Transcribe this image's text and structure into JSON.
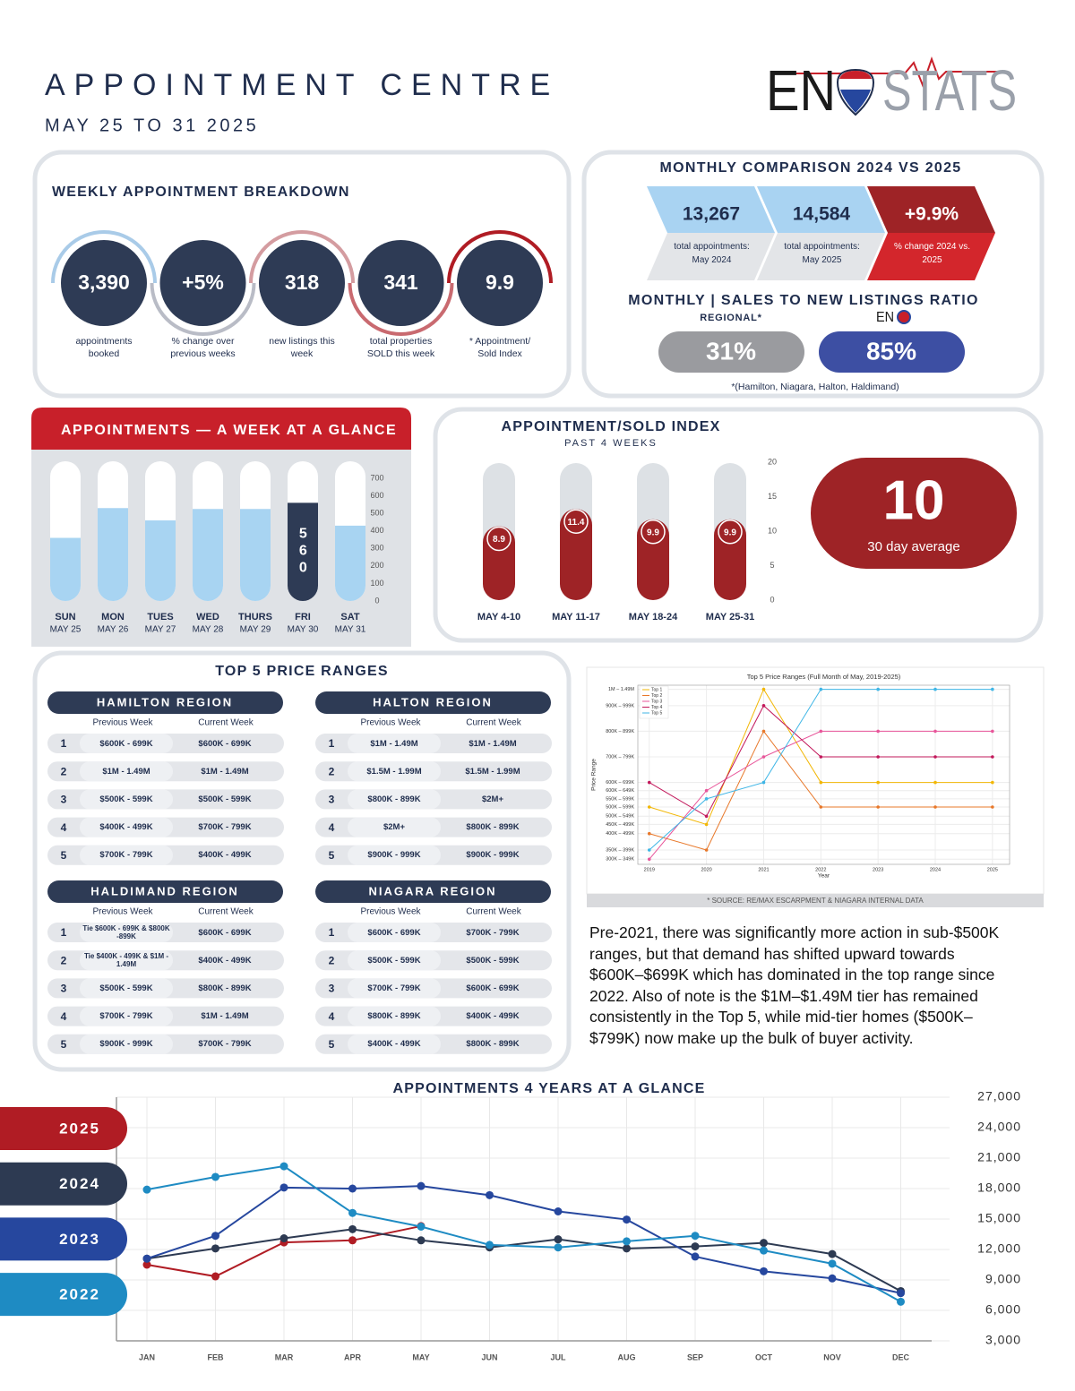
{
  "header": {
    "title": "APPOINTMENT CENTRE",
    "subtitle": "MAY 25 TO 31 2025"
  },
  "logo": {
    "left": "EN",
    "right": "STATS"
  },
  "weekly_breakdown": {
    "title": "WEEKLY APPOINTMENT BREAKDOWN",
    "items": [
      {
        "value": "3,390",
        "label": "appointments booked"
      },
      {
        "value": "+5%",
        "label": "% change over previous weeks"
      },
      {
        "value": "318",
        "label": "new listings this week"
      },
      {
        "value": "341",
        "label": "total properties SOLD this week"
      },
      {
        "value": "9.9",
        "label": "* Appointment/ Sold Index"
      }
    ]
  },
  "monthly_comparison": {
    "title": "MONTHLY COMPARISON 2024 VS 2025",
    "items": [
      {
        "value": "13,267",
        "label": "total appointments: May 2024"
      },
      {
        "value": "14,584",
        "label": "total appointments: May 2025"
      },
      {
        "value": "+9.9%",
        "label": "% change 2024 vs. 2025"
      }
    ]
  },
  "ratio": {
    "title": "MONTHLY | SALES TO NEW LISTINGS RATIO",
    "regional_label": "REGIONAL*",
    "regional_value": "31%",
    "brand_value": "85%",
    "footnote": "*(Hamilton, Niagara, Halton, Haldimand)"
  },
  "price_ranges": {
    "title": "TOP 5 PRICE RANGES",
    "column_headers": [
      "Previous Week",
      "Current Week"
    ],
    "regions": [
      {
        "name": "HAMILTON REGION",
        "rows": [
          {
            "rank": "1",
            "previous": "$600K - 699K",
            "current": "$600K - 699K"
          },
          {
            "rank": "2",
            "previous": "$1M - 1.49M",
            "current": "$1M - 1.49M"
          },
          {
            "rank": "3",
            "previous": "$500K - 599K",
            "current": "$500K - 599K"
          },
          {
            "rank": "4",
            "previous": "$400K - 499K",
            "current": "$700K - 799K"
          },
          {
            "rank": "5",
            "previous": "$700K - 799K",
            "current": "$400K - 499K"
          }
        ]
      },
      {
        "name": "HALTON REGION",
        "rows": [
          {
            "rank": "1",
            "previous": "$1M - 1.49M",
            "current": "$1M - 1.49M"
          },
          {
            "rank": "2",
            "previous": "$1.5M - 1.99M",
            "current": "$1.5M - 1.99M"
          },
          {
            "rank": "3",
            "previous": "$800K - 899K",
            "current": "$2M+"
          },
          {
            "rank": "4",
            "previous": "$2M+",
            "current": "$800K - 899K"
          },
          {
            "rank": "5",
            "previous": "$900K - 999K",
            "current": "$900K - 999K"
          }
        ]
      },
      {
        "name": "HALDIMAND REGION",
        "rows": [
          {
            "rank": "1",
            "previous": "Tie $600K - 699K & $800K -899K",
            "current": "$600K - 699K"
          },
          {
            "rank": "2",
            "previous": "Tie $400K - 499K & $1M - 1.49M",
            "current": "$400K - 499K"
          },
          {
            "rank": "3",
            "previous": "$500K - 599K",
            "current": "$800K - 899K"
          },
          {
            "rank": "4",
            "previous": "$700K - 799K",
            "current": "$1M - 1.49M"
          },
          {
            "rank": "5",
            "previous": "$900K - 999K",
            "current": "$700K - 799K"
          }
        ]
      },
      {
        "name": "NIAGARA REGION",
        "rows": [
          {
            "rank": "1",
            "previous": "$600K - 699K",
            "current": "$700K - 799K"
          },
          {
            "rank": "2",
            "previous": "$500K - 599K",
            "current": "$500K - 599K"
          },
          {
            "rank": "3",
            "previous": "$700K - 799K",
            "current": "$600K - 699K"
          },
          {
            "rank": "4",
            "previous": "$800K - 899K",
            "current": "$400K - 499K"
          },
          {
            "rank": "5",
            "previous": "$400K - 499K",
            "current": "$800K - 899K"
          }
        ]
      }
    ]
  },
  "source": "* SOURCE:  RE/MAX ESCARPMENT & NIAGARA INTERNAL DATA",
  "commentary": "Pre-2021, there was significantly more action in sub-$500K ranges, but that demand has shifted upward towards $600K–$699K which has dominated  in the top range since 2022. Also of note is the $1M–$1.49M tier has remained consistently in the Top 5, while mid-tier homes ($500K–$799K) now make up the bulk of buyer activity.",
  "chart_data": [
    {
      "type": "bar",
      "title": "APPOINTMENTS — A WEEK AT A GLANCE",
      "categories": [
        "SUN",
        "MON",
        "TUES",
        "WED",
        "THURS",
        "FRI",
        "SAT"
      ],
      "dates": [
        "MAY 25",
        "MAY 26",
        "MAY 27",
        "MAY 28",
        "MAY 29",
        "MAY 30",
        "MAY 31"
      ],
      "values": [
        360,
        530,
        460,
        525,
        525,
        560,
        430
      ],
      "value_labels": [
        null,
        null,
        null,
        null,
        null,
        "560",
        null
      ],
      "colors": [
        "#a8d4f2",
        "#a8d4f2",
        "#a8d4f2",
        "#a8d4f2",
        "#a8d4f2",
        "#2e3b55",
        "#a8d4f2"
      ],
      "ylim": [
        0,
        700
      ],
      "yticks": [
        0,
        100,
        200,
        300,
        400,
        500,
        600,
        700
      ]
    },
    {
      "type": "bar",
      "title": "APPOINTMENT/SOLD INDEX",
      "subtitle": "PAST 4 WEEKS",
      "categories": [
        "MAY 4-10",
        "MAY 11-17",
        "MAY 18-24",
        "MAY 25-31"
      ],
      "values": [
        8.9,
        11.4,
        9.9,
        9.9
      ],
      "color": "#9e2326",
      "ylim": [
        0,
        20
      ],
      "yticks": [
        0,
        5,
        10,
        15,
        20
      ],
      "average": {
        "value": "10",
        "label": "30 day average"
      }
    },
    {
      "type": "line",
      "title": "Top 5 Price Ranges (Full Month of May, 2019-2025)",
      "xlabel": "Year",
      "ylabel": "Price Range",
      "x": [
        2019,
        2020,
        2021,
        2022,
        2023,
        2024,
        2025
      ],
      "xlim": [
        2018.8,
        2025.3
      ],
      "xticks": [
        2019,
        2020,
        2021,
        2022,
        2023,
        2024,
        2025
      ],
      "ylim": [
        280,
        980
      ],
      "yticks": [
        {
          "value": 300,
          "label": "300K – 349K"
        },
        {
          "value": 336,
          "label": "350K – 399K"
        },
        {
          "value": 400,
          "label": "400K – 499K"
        },
        {
          "value": 436,
          "label": "450K – 499K"
        },
        {
          "value": 468,
          "label": "500K – 549K"
        },
        {
          "value": 504,
          "label": "500K – 599K"
        },
        {
          "value": 536,
          "label": "550K – 599K"
        },
        {
          "value": 568,
          "label": "600K – 649K"
        },
        {
          "value": 600,
          "label": "600K – 699K"
        },
        {
          "value": 700,
          "label": "700K – 799K"
        },
        {
          "value": 800,
          "label": "800K – 899K"
        },
        {
          "value": 900,
          "label": "900K – 999K"
        },
        {
          "value": 964,
          "label": "1M – 1.49M"
        }
      ],
      "grid": true,
      "legend": "upper left",
      "series": [
        {
          "name": "Top 1",
          "color": "#f2b705",
          "values": [
            504,
            436,
            964,
            600,
            600,
            600,
            600
          ]
        },
        {
          "name": "Top 2",
          "color": "#e8782a",
          "values": [
            400,
            336,
            800,
            504,
            504,
            504,
            504
          ]
        },
        {
          "name": "Top 3",
          "color": "#e8559a",
          "values": [
            300,
            568,
            700,
            800,
            800,
            800,
            800
          ]
        },
        {
          "name": "Top 4",
          "color": "#c2185b",
          "values": [
            600,
            468,
            900,
            700,
            700,
            700,
            700
          ]
        },
        {
          "name": "Top 5",
          "color": "#3fb6e6",
          "values": [
            336,
            536,
            600,
            964,
            964,
            964,
            964
          ]
        }
      ]
    },
    {
      "type": "line",
      "title": "APPOINTMENTS 4 YEARS AT A GLANCE",
      "categories": [
        "JAN",
        "FEB",
        "MAR",
        "APR",
        "MAY",
        "JUN",
        "JUL",
        "AUG",
        "SEP",
        "OCT",
        "NOV",
        "DEC"
      ],
      "ylim": [
        3000,
        27000
      ],
      "yticks": [
        {
          "value": 3000,
          "label": "3,000"
        },
        {
          "value": 6000,
          "label": "6,000"
        },
        {
          "value": 9000,
          "label": "9,000"
        },
        {
          "value": 12000,
          "label": "12,000"
        },
        {
          "value": 15000,
          "label": "15,000"
        },
        {
          "value": 18000,
          "label": "18,000"
        },
        {
          "value": 21000,
          "label": "21,000"
        },
        {
          "value": 24000,
          "label": "24,000"
        },
        {
          "value": 27000,
          "label": "27,000"
        }
      ],
      "grid": true,
      "legend": "left",
      "series": [
        {
          "name": "2025",
          "color": "#b01c24",
          "values": [
            10500,
            9350,
            12700,
            12900,
            14300,
            null,
            null,
            null,
            null,
            null,
            null,
            null
          ]
        },
        {
          "name": "2024",
          "color": "#2d3a52",
          "values": [
            11100,
            12100,
            13100,
            14000,
            12900,
            12200,
            13000,
            12100,
            12300,
            12650,
            11550,
            7900
          ]
        },
        {
          "name": "2023",
          "color": "#26479e",
          "values": [
            11100,
            13350,
            18100,
            18000,
            18250,
            17350,
            15750,
            14950,
            11300,
            9850,
            9150,
            7700
          ]
        },
        {
          "name": "2022",
          "color": "#1e8bc3",
          "values": [
            17900,
            19150,
            20200,
            15600,
            14250,
            12450,
            12200,
            12800,
            13350,
            11900,
            10600,
            6850
          ]
        }
      ]
    }
  ]
}
